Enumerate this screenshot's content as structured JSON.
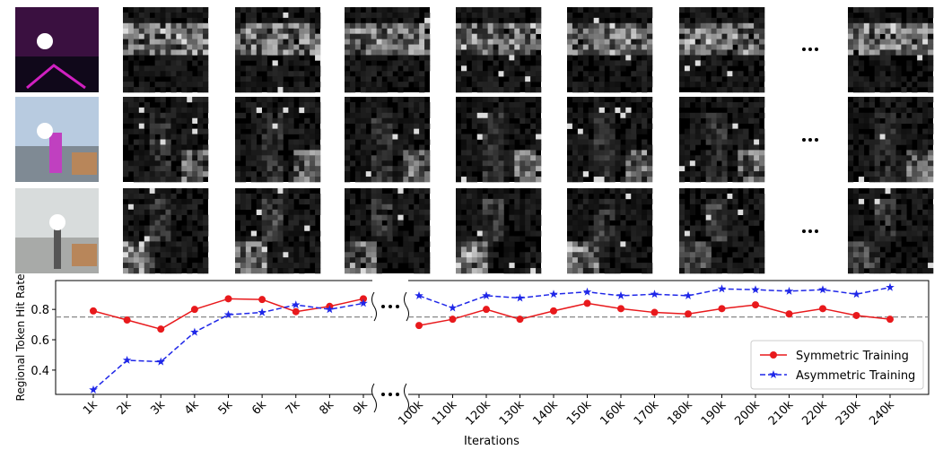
{
  "chart_data": [
    {
      "type": "line",
      "ylabel": "Regional Token Hit Rate",
      "categories": [
        "1k",
        "2k",
        "3k",
        "4k",
        "5k",
        "6k",
        "7k",
        "8k",
        "9k"
      ],
      "series": [
        {
          "color": "#e8191c",
          "marker": "circle",
          "linestyle": "solid",
          "values": [
            0.79,
            0.73,
            0.67,
            0.8,
            0.87,
            0.865,
            0.785,
            0.82,
            0.87
          ]
        },
        {
          "color": "#1f27e8",
          "marker": "star",
          "linestyle": "dashed",
          "values": [
            0.27,
            0.465,
            0.455,
            0.65,
            0.765,
            0.78,
            0.83,
            0.8,
            0.84
          ]
        }
      ],
      "ylim": [
        0.24,
        0.99
      ],
      "yticks": [
        0.4,
        0.6,
        0.8
      ],
      "hline": 0.75
    },
    {
      "type": "line",
      "xlabel": "Iterations",
      "categories": [
        "100k",
        "110k",
        "120k",
        "130k",
        "140k",
        "150k",
        "160k",
        "170k",
        "180k",
        "190k",
        "200k",
        "210k",
        "220k",
        "230k",
        "240k"
      ],
      "series": [
        {
          "name": "Symmetric Training",
          "color": "#e8191c",
          "marker": "circle",
          "linestyle": "solid",
          "values": [
            0.694,
            0.735,
            0.8,
            0.735,
            0.79,
            0.84,
            0.805,
            0.78,
            0.77,
            0.805,
            0.83,
            0.77,
            0.805,
            0.76,
            0.735
          ]
        },
        {
          "name": "Asymmetric Training",
          "color": "#1f27e8",
          "marker": "star",
          "linestyle": "dashed",
          "values": [
            0.89,
            0.81,
            0.89,
            0.875,
            0.9,
            0.915,
            0.89,
            0.9,
            0.89,
            0.935,
            0.93,
            0.92,
            0.93,
            0.9,
            0.945
          ]
        }
      ],
      "ylim": [
        0.24,
        0.99
      ],
      "hline": 0.75,
      "legend": "lower right"
    }
  ]
}
